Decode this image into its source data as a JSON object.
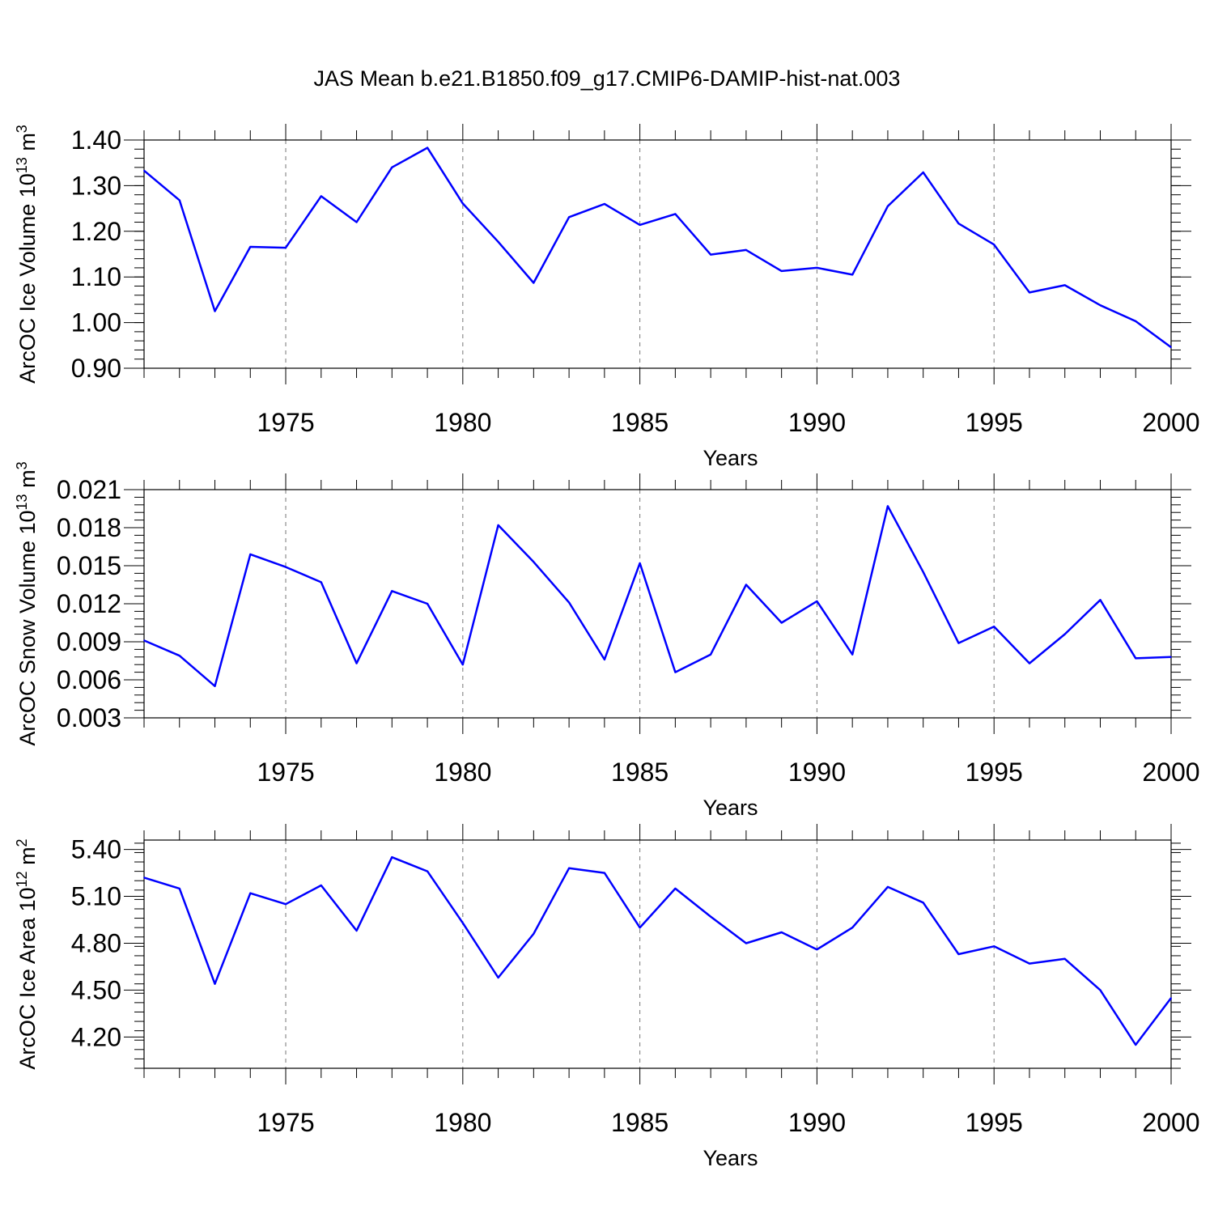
{
  "title": "JAS Mean b.e21.B1850.f09_g17.CMIP6-DAMIP-hist-nat.003",
  "line_color": "#0000ff",
  "chart_data": [
    {
      "type": "line",
      "title": "JAS Mean b.e21.B1850.f09_g17.CMIP6-DAMIP-hist-nat.003",
      "ylabel": "ArcOC Ice Volume 10",
      "ylabel_exp": "13",
      "ylabel_unit": " m",
      "ylabel_unit_exp": "3",
      "xlabel": "Years",
      "xlim": [
        1971,
        2000
      ],
      "ylim": [
        0.9,
        1.4
      ],
      "grid": "vertical dashed at major x ticks",
      "x_major_ticks": [
        "1975",
        "1980",
        "1985",
        "1990",
        "1995",
        "2000"
      ],
      "y_ticks": [
        "0.90",
        "1.00",
        "1.10",
        "1.20",
        "1.30",
        "1.40"
      ],
      "y_minor_step": 0.02,
      "x": [
        1971,
        1972,
        1973,
        1974,
        1975,
        1976,
        1977,
        1978,
        1979,
        1980,
        1981,
        1982,
        1983,
        1984,
        1985,
        1986,
        1987,
        1988,
        1989,
        1990,
        1991,
        1992,
        1993,
        1994,
        1995,
        1996,
        1997,
        1998,
        1999,
        2000
      ],
      "series": [
        {
          "values": [
            1.333,
            1.268,
            1.025,
            1.166,
            1.164,
            1.277,
            1.22,
            1.34,
            1.383,
            1.261,
            1.177,
            1.087,
            1.231,
            1.26,
            1.214,
            1.238,
            1.149,
            1.159,
            1.113,
            1.12,
            1.105,
            1.255,
            1.329,
            1.217,
            1.171,
            1.066,
            1.082,
            1.038,
            1.003,
            0.946
          ]
        }
      ]
    },
    {
      "type": "line",
      "ylabel": "ArcOC Snow Volume 10",
      "ylabel_exp": "13",
      "ylabel_unit": " m",
      "ylabel_unit_exp": "3",
      "xlabel": "Years",
      "xlim": [
        1971,
        2000
      ],
      "ylim": [
        0.003,
        0.021
      ],
      "grid": "vertical dashed at major x ticks",
      "x_major_ticks": [
        "1975",
        "1980",
        "1985",
        "1990",
        "1995",
        "2000"
      ],
      "y_ticks": [
        "0.003",
        "0.006",
        "0.009",
        "0.012",
        "0.015",
        "0.018",
        "0.021"
      ],
      "y_minor_step": 0.0006,
      "x": [
        1971,
        1972,
        1973,
        1974,
        1975,
        1976,
        1977,
        1978,
        1979,
        1980,
        1981,
        1982,
        1983,
        1984,
        1985,
        1986,
        1987,
        1988,
        1989,
        1990,
        1991,
        1992,
        1993,
        1994,
        1995,
        1996,
        1997,
        1998,
        1999,
        2000
      ],
      "series": [
        {
          "values": [
            0.0091,
            0.0079,
            0.0055,
            0.0159,
            0.0149,
            0.0137,
            0.0073,
            0.013,
            0.012,
            0.0072,
            0.0182,
            0.0153,
            0.0121,
            0.0076,
            0.0152,
            0.0066,
            0.008,
            0.0135,
            0.0105,
            0.0122,
            0.008,
            0.0197,
            0.0145,
            0.0089,
            0.0102,
            0.0073,
            0.0096,
            0.0123,
            0.0077,
            0.0078
          ]
        }
      ]
    },
    {
      "type": "line",
      "ylabel": "ArcOC Ice Area 10",
      "ylabel_exp": "12",
      "ylabel_unit": " m",
      "ylabel_unit_exp": "2",
      "xlabel": "Years",
      "xlim": [
        1971,
        2000
      ],
      "ylim": [
        4.0,
        5.46
      ],
      "grid": "vertical dashed at major x ticks",
      "x_major_ticks": [
        "1975",
        "1980",
        "1985",
        "1990",
        "1995",
        "2000"
      ],
      "y_ticks": [
        "4.20",
        "4.50",
        "4.80",
        "5.10",
        "5.40"
      ],
      "y_minor_step": 0.06,
      "x": [
        1971,
        1972,
        1973,
        1974,
        1975,
        1976,
        1977,
        1978,
        1979,
        1980,
        1981,
        1982,
        1983,
        1984,
        1985,
        1986,
        1987,
        1988,
        1989,
        1990,
        1991,
        1992,
        1993,
        1994,
        1995,
        1996,
        1997,
        1998,
        1999,
        2000
      ],
      "series": [
        {
          "values": [
            5.22,
            5.15,
            4.54,
            5.12,
            5.05,
            5.17,
            4.88,
            5.35,
            5.26,
            4.93,
            4.58,
            4.86,
            5.28,
            5.25,
            4.9,
            5.15,
            4.97,
            4.8,
            4.87,
            4.76,
            4.9,
            5.16,
            5.06,
            4.73,
            4.78,
            4.67,
            4.7,
            4.5,
            4.15,
            4.45
          ]
        }
      ]
    }
  ]
}
